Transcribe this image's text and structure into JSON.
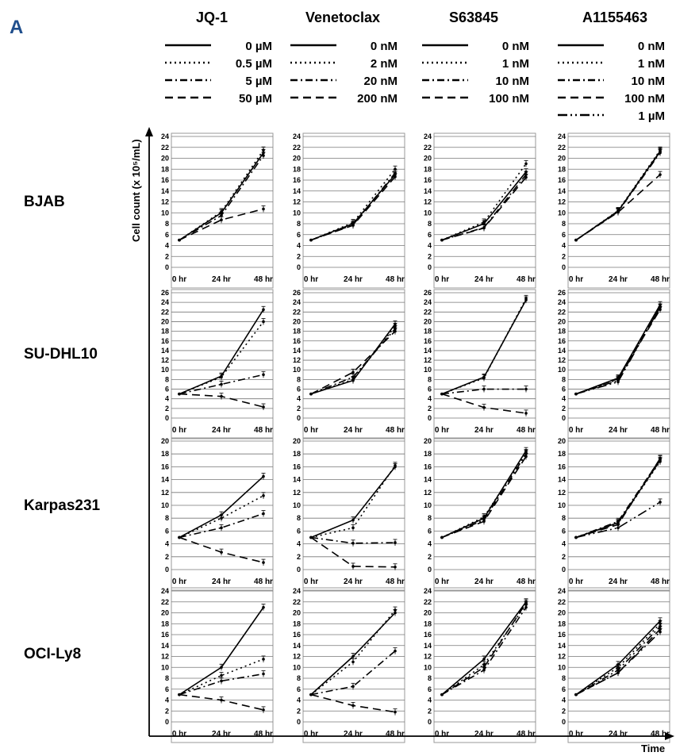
{
  "panel_label": "A",
  "drugs": [
    {
      "name": "JQ-1",
      "doses": [
        "0 µM",
        "0.5 µM",
        "5 µM",
        "50 µM"
      ]
    },
    {
      "name": "Venetoclax",
      "doses": [
        "0 nM",
        "2 nM",
        "20 nM",
        "200 nM"
      ]
    },
    {
      "name": "S63845",
      "doses": [
        "0 nM",
        "1 nM",
        "10 nM",
        "100 nM"
      ]
    },
    {
      "name": "A1155463",
      "doses": [
        "0 nM",
        "1 nM",
        "10 nM",
        "100 nM",
        "1 µM"
      ]
    }
  ],
  "cell_lines": [
    "BJAB",
    "SU-DHL10",
    "Karpas231",
    "OCI-Ly8"
  ],
  "y_axis_label": "Cell count   (x 10⁵/mL)",
  "x_axis_label": "Time",
  "x_ticks": [
    "0 hr",
    "24 hr",
    "48 hr"
  ],
  "line_styles": [
    "solid",
    "dotted",
    "dashdot",
    "dashed",
    "dashdotdot"
  ],
  "chart_data": [
    {
      "type": "line",
      "cell_line": "BJAB",
      "drug": "JQ-1",
      "ylim": [
        0,
        24
      ],
      "y_ticks": [
        0,
        2,
        4,
        6,
        8,
        10,
        12,
        14,
        16,
        18,
        20,
        22,
        24
      ],
      "series": [
        {
          "name": "0 µM",
          "values": [
            5,
            10,
            21
          ]
        },
        {
          "name": "0.5 µM",
          "values": [
            5,
            10.2,
            21.5
          ]
        },
        {
          "name": "5 µM",
          "values": [
            5,
            9.5,
            20.5
          ]
        },
        {
          "name": "50 µM",
          "values": [
            5,
            8.7,
            10.7
          ]
        }
      ]
    },
    {
      "type": "line",
      "cell_line": "BJAB",
      "drug": "Venetoclax",
      "ylim": [
        0,
        24
      ],
      "y_ticks": [
        0,
        2,
        4,
        6,
        8,
        10,
        12,
        14,
        16,
        18,
        20,
        22,
        24
      ],
      "series": [
        {
          "name": "0 nM",
          "values": [
            5,
            8,
            17
          ]
        },
        {
          "name": "2 nM",
          "values": [
            5,
            8.2,
            18
          ]
        },
        {
          "name": "20 nM",
          "values": [
            5,
            7.8,
            17.3
          ]
        },
        {
          "name": "200 nM",
          "values": [
            5,
            7.7,
            16.6
          ]
        }
      ]
    },
    {
      "type": "line",
      "cell_line": "BJAB",
      "drug": "S63845",
      "ylim": [
        0,
        24
      ],
      "y_ticks": [
        0,
        2,
        4,
        6,
        8,
        10,
        12,
        14,
        16,
        18,
        20,
        22,
        24
      ],
      "series": [
        {
          "name": "0 nM",
          "values": [
            5,
            8,
            17.5
          ]
        },
        {
          "name": "1 nM",
          "values": [
            5,
            8.3,
            19
          ]
        },
        {
          "name": "10 nM",
          "values": [
            5,
            7.3,
            17
          ]
        },
        {
          "name": "100 nM",
          "values": [
            5,
            7.2,
            16.5
          ]
        }
      ]
    },
    {
      "type": "line",
      "cell_line": "BJAB",
      "drug": "A1155463",
      "ylim": [
        0,
        24
      ],
      "y_ticks": [
        0,
        2,
        4,
        6,
        8,
        10,
        12,
        14,
        16,
        18,
        20,
        22,
        24
      ],
      "series": [
        {
          "name": "0 nM",
          "values": [
            5,
            10.3,
            21.3
          ]
        },
        {
          "name": "1 nM",
          "values": [
            5,
            10.4,
            21.5
          ]
        },
        {
          "name": "10 nM",
          "values": [
            5,
            10.2,
            21
          ]
        },
        {
          "name": "100 nM",
          "values": [
            5,
            10.1,
            17
          ]
        },
        {
          "name": "1 µM",
          "values": [
            5,
            10.3,
            21.2
          ]
        }
      ]
    },
    {
      "type": "line",
      "cell_line": "SU-DHL10",
      "drug": "JQ-1",
      "ylim": [
        0,
        26
      ],
      "y_ticks": [
        0,
        2,
        4,
        6,
        8,
        10,
        12,
        14,
        16,
        18,
        20,
        22,
        24,
        26
      ],
      "series": [
        {
          "name": "0 µM",
          "values": [
            5,
            8.7,
            22.5
          ]
        },
        {
          "name": "0.5 µM",
          "values": [
            5,
            8.5,
            20
          ]
        },
        {
          "name": "5 µM",
          "values": [
            5,
            7,
            9
          ]
        },
        {
          "name": "50 µM",
          "values": [
            5,
            4.5,
            2.3
          ]
        }
      ]
    },
    {
      "type": "line",
      "cell_line": "SU-DHL10",
      "drug": "Venetoclax",
      "ylim": [
        0,
        26
      ],
      "y_ticks": [
        0,
        2,
        4,
        6,
        8,
        10,
        12,
        14,
        16,
        18,
        20,
        22,
        24,
        26
      ],
      "series": [
        {
          "name": "0 nM",
          "values": [
            5,
            7.8,
            19.5
          ]
        },
        {
          "name": "2 nM",
          "values": [
            5,
            8,
            19
          ]
        },
        {
          "name": "20 nM",
          "values": [
            5,
            8.5,
            18.5
          ]
        },
        {
          "name": "200 nM",
          "values": [
            5,
            9.5,
            18
          ]
        }
      ]
    },
    {
      "type": "line",
      "cell_line": "SU-DHL10",
      "drug": "S63845",
      "ylim": [
        0,
        26
      ],
      "y_ticks": [
        0,
        2,
        4,
        6,
        8,
        10,
        12,
        14,
        16,
        18,
        20,
        22,
        24,
        26
      ],
      "series": [
        {
          "name": "0 nM",
          "values": [
            5,
            8.5,
            24.5
          ]
        },
        {
          "name": "1 nM",
          "values": [
            5,
            8.3,
            24.8
          ]
        },
        {
          "name": "10 nM",
          "values": [
            5,
            6,
            6
          ]
        },
        {
          "name": "100 nM",
          "values": [
            5,
            2.2,
            1
          ]
        }
      ]
    },
    {
      "type": "line",
      "cell_line": "SU-DHL10",
      "drug": "A1155463",
      "ylim": [
        0,
        26
      ],
      "y_ticks": [
        0,
        2,
        4,
        6,
        8,
        10,
        12,
        14,
        16,
        18,
        20,
        22,
        24,
        26
      ],
      "series": [
        {
          "name": "0 nM",
          "values": [
            5,
            8.3,
            23.5
          ]
        },
        {
          "name": "1 nM",
          "values": [
            5,
            8,
            23
          ]
        },
        {
          "name": "10 nM",
          "values": [
            5,
            7.8,
            23
          ]
        },
        {
          "name": "100 nM",
          "values": [
            5,
            8.2,
            22.5
          ]
        },
        {
          "name": "1 µM",
          "values": [
            5,
            7.5,
            23
          ]
        }
      ]
    },
    {
      "type": "line",
      "cell_line": "Karpas231",
      "drug": "JQ-1",
      "ylim": [
        0,
        20
      ],
      "y_ticks": [
        0,
        2,
        4,
        6,
        8,
        10,
        12,
        14,
        16,
        18,
        20
      ],
      "series": [
        {
          "name": "0 µM",
          "values": [
            5,
            8.5,
            14.5
          ]
        },
        {
          "name": "0.5 µM",
          "values": [
            5,
            8,
            11.5
          ]
        },
        {
          "name": "5 µM",
          "values": [
            5,
            6.5,
            8.7
          ]
        },
        {
          "name": "50 µM",
          "values": [
            5,
            2.7,
            1.1
          ]
        }
      ]
    },
    {
      "type": "line",
      "cell_line": "Karpas231",
      "drug": "Venetoclax",
      "ylim": [
        0,
        20
      ],
      "y_ticks": [
        0,
        2,
        4,
        6,
        8,
        10,
        12,
        14,
        16,
        18,
        20
      ],
      "series": [
        {
          "name": "0 nM",
          "values": [
            5,
            7.7,
            16
          ]
        },
        {
          "name": "2 nM",
          "values": [
            5,
            6.5,
            16.2
          ]
        },
        {
          "name": "20 nM",
          "values": [
            5,
            4.1,
            4.2
          ]
        },
        {
          "name": "200 nM",
          "values": [
            5,
            0.5,
            0.4
          ]
        }
      ]
    },
    {
      "type": "line",
      "cell_line": "Karpas231",
      "drug": "S63845",
      "ylim": [
        0,
        20
      ],
      "y_ticks": [
        0,
        2,
        4,
        6,
        8,
        10,
        12,
        14,
        16,
        18,
        20
      ],
      "series": [
        {
          "name": "0 nM",
          "values": [
            5,
            8,
            18.5
          ]
        },
        {
          "name": "1 nM",
          "values": [
            5,
            8.2,
            18.2
          ]
        },
        {
          "name": "10 nM",
          "values": [
            5,
            7.7,
            18
          ]
        },
        {
          "name": "100 nM",
          "values": [
            5,
            7.5,
            17.6
          ]
        }
      ]
    },
    {
      "type": "line",
      "cell_line": "Karpas231",
      "drug": "A1155463",
      "ylim": [
        0,
        20
      ],
      "y_ticks": [
        0,
        2,
        4,
        6,
        8,
        10,
        12,
        14,
        16,
        18,
        20
      ],
      "series": [
        {
          "name": "0 nM",
          "values": [
            5,
            7.3,
            17
          ]
        },
        {
          "name": "1 nM",
          "values": [
            5,
            7.2,
            16.8
          ]
        },
        {
          "name": "10 nM",
          "values": [
            5,
            7.5,
            17.2
          ]
        },
        {
          "name": "100 nM",
          "values": [
            5,
            7,
            17.3
          ]
        },
        {
          "name": "1 µM",
          "values": [
            5,
            6.5,
            10.5
          ]
        }
      ]
    },
    {
      "type": "line",
      "cell_line": "OCI-Ly8",
      "drug": "JQ-1",
      "ylim": [
        0,
        24
      ],
      "y_ticks": [
        0,
        2,
        4,
        6,
        8,
        10,
        12,
        14,
        16,
        18,
        20,
        22,
        24
      ],
      "series": [
        {
          "name": "0 µM",
          "values": [
            5,
            10,
            21
          ]
        },
        {
          "name": "0.5 µM",
          "values": [
            5,
            8.5,
            11.5
          ]
        },
        {
          "name": "5 µM",
          "values": [
            5,
            7.5,
            8.8
          ]
        },
        {
          "name": "50 µM",
          "values": [
            5,
            4,
            2.2
          ]
        }
      ]
    },
    {
      "type": "line",
      "cell_line": "OCI-Ly8",
      "drug": "Venetoclax",
      "ylim": [
        0,
        24
      ],
      "y_ticks": [
        0,
        2,
        4,
        6,
        8,
        10,
        12,
        14,
        16,
        18,
        20,
        22,
        24
      ],
      "series": [
        {
          "name": "0 nM",
          "values": [
            5,
            12,
            20
          ]
        },
        {
          "name": "2 nM",
          "values": [
            5,
            11,
            20.5
          ]
        },
        {
          "name": "20 nM",
          "values": [
            5,
            6.5,
            13
          ]
        },
        {
          "name": "200 nM",
          "values": [
            5,
            3,
            1.8
          ]
        }
      ]
    },
    {
      "type": "line",
      "cell_line": "OCI-Ly8",
      "drug": "S63845",
      "ylim": [
        0,
        24
      ],
      "y_ticks": [
        0,
        2,
        4,
        6,
        8,
        10,
        12,
        14,
        16,
        18,
        20,
        22,
        24
      ],
      "series": [
        {
          "name": "0 nM",
          "values": [
            5,
            11.5,
            22
          ]
        },
        {
          "name": "1 nM",
          "values": [
            5,
            10.5,
            21.5
          ]
        },
        {
          "name": "10 nM",
          "values": [
            5,
            9.5,
            21
          ]
        },
        {
          "name": "100 nM",
          "values": [
            5,
            10,
            21.8
          ]
        }
      ]
    },
    {
      "type": "line",
      "cell_line": "OCI-Ly8",
      "drug": "A1155463",
      "ylim": [
        0,
        24
      ],
      "y_ticks": [
        0,
        2,
        4,
        6,
        8,
        10,
        12,
        14,
        16,
        18,
        20,
        22,
        24
      ],
      "series": [
        {
          "name": "0 nM",
          "values": [
            5,
            10.5,
            18.5
          ]
        },
        {
          "name": "1 nM",
          "values": [
            5,
            10,
            18
          ]
        },
        {
          "name": "10 nM",
          "values": [
            5,
            9.5,
            17.5
          ]
        },
        {
          "name": "100 nM",
          "values": [
            5,
            9,
            17
          ]
        },
        {
          "name": "1 µM",
          "values": [
            5,
            9,
            16.5
          ]
        }
      ]
    }
  ]
}
